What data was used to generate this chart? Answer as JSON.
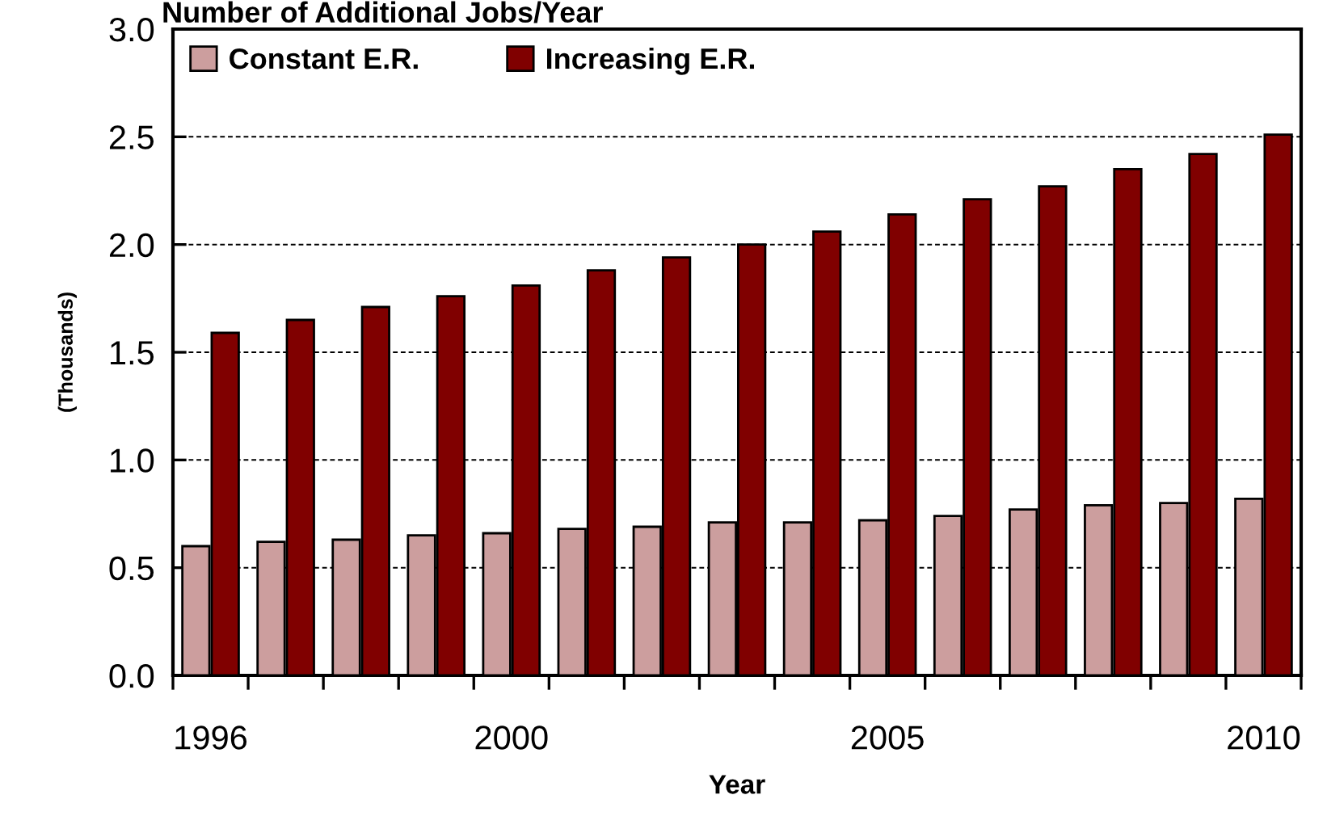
{
  "chart_data": {
    "type": "bar",
    "title": "Number of Additional Jobs/Year",
    "xlabel": "Year",
    "ylabel": "(Thousands)",
    "categories": [
      "1996",
      null,
      null,
      null,
      "2000",
      null,
      null,
      null,
      null,
      "2005",
      null,
      null,
      null,
      null,
      "2010"
    ],
    "series": [
      {
        "name": "Constant E.R.",
        "color": "#cc9e9e",
        "values": [
          0.6,
          0.62,
          0.63,
          0.65,
          0.66,
          0.68,
          0.69,
          0.71,
          0.71,
          0.72,
          0.74,
          0.77,
          0.79,
          0.8,
          0.82
        ]
      },
      {
        "name": "Increasing E.R.",
        "color": "#800000",
        "values": [
          1.59,
          1.65,
          1.71,
          1.76,
          1.81,
          1.88,
          1.94,
          2.0,
          2.06,
          2.14,
          2.21,
          2.27,
          2.35,
          2.42,
          2.51
        ]
      }
    ],
    "ylim": [
      0,
      3
    ],
    "yticks": [
      {
        "value": 0,
        "label": "0.0"
      },
      {
        "value": 0.5,
        "label": "0.5"
      },
      {
        "value": 1,
        "label": "1.0"
      },
      {
        "value": 1.5,
        "label": "1.5"
      },
      {
        "value": 2,
        "label": "2.0"
      },
      {
        "value": 2.5,
        "label": "2.5"
      },
      {
        "value": 3,
        "label": "3.0"
      }
    ],
    "grid": "y",
    "legend": "top left"
  }
}
